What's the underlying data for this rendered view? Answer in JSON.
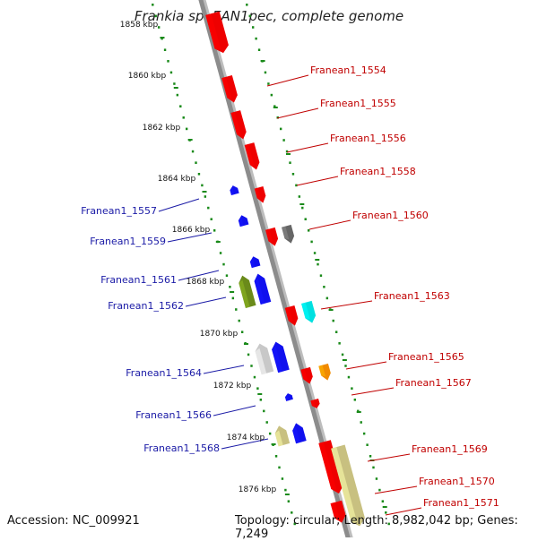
{
  "title": "Frankia sp. EAN1pec, complete genome",
  "footer": {
    "accession": "Accession: NC_009921",
    "summary": "Topology: circular; Length: 8,982,042 bp; Genes: 7,249"
  },
  "colors": {
    "forward": "#ee0000",
    "reverse": "#1010ee",
    "forward_label": "#c00000",
    "reverse_label": "#1a1aa6",
    "backbone": "#8c8c8c",
    "track": "#1a8a1a"
  },
  "ticks": [
    "1858 kbp",
    "1860 kbp",
    "1862 kbp",
    "1864 kbp",
    "1866 kbp",
    "1868 kbp",
    "1870 kbp",
    "1872 kbp",
    "1874 kbp",
    "1876 kbp"
  ],
  "genes_right": [
    "Franean1_1554",
    "Franean1_1555",
    "Franean1_1556",
    "Franean1_1558",
    "Franean1_1560",
    "Franean1_1563",
    "Franean1_1565",
    "Franean1_1567",
    "Franean1_1569",
    "Franean1_1570",
    "Franean1_1571"
  ],
  "genes_left": [
    "Franean1_1557",
    "Franean1_1559",
    "Franean1_1561",
    "Franean1_1562",
    "Franean1_1564",
    "Franean1_1566",
    "Franean1_1568"
  ]
}
